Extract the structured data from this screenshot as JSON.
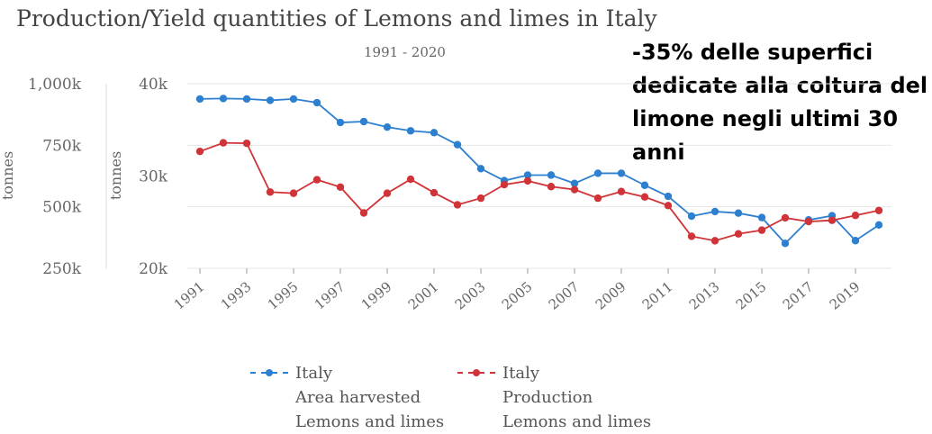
{
  "chart_data": {
    "type": "line",
    "title": "Production/Yield quantities of Lemons and limes in Italy",
    "subtitle": "1991 - 2020",
    "annotation": "-35% delle superfici dedicate alla coltura del limone negli ultimi 30 anni",
    "x": [
      1991,
      1992,
      1993,
      1994,
      1995,
      1996,
      1997,
      1998,
      1999,
      2000,
      2001,
      2002,
      2003,
      2004,
      2005,
      2006,
      2007,
      2008,
      2009,
      2010,
      2011,
      2012,
      2013,
      2014,
      2015,
      2016,
      2017,
      2018,
      2019,
      2020
    ],
    "x_tick_labels": [
      "1991",
      "1993",
      "1995",
      "1997",
      "1999",
      "2001",
      "2003",
      "2005",
      "2007",
      "2009",
      "2011",
      "2013",
      "2015",
      "2017",
      "2019"
    ],
    "axes": {
      "left_outer": {
        "label": "tonnes",
        "ylim": [
          250000,
          1000000
        ],
        "ticks": [
          "1,000k",
          "750k",
          "500k",
          "250k"
        ],
        "series": "Production"
      },
      "left_inner": {
        "label": "tonnes",
        "ylim": [
          20000,
          40000
        ],
        "ticks": [
          "40k",
          "30k",
          "20k"
        ],
        "series": "Area harvested"
      }
    },
    "grid": true,
    "legend_position": "bottom",
    "series": [
      {
        "name": "Area harvested",
        "legend": [
          "Italy",
          "Area harvested",
          "Lemons and limes"
        ],
        "color": "#2d7fcf",
        "axis": "left_inner",
        "values": [
          38350,
          38400,
          38350,
          38200,
          38350,
          37950,
          35800,
          35900,
          35300,
          34900,
          34700,
          33400,
          30800,
          29500,
          30100,
          30100,
          29200,
          30300,
          30300,
          29000,
          27800,
          25650,
          26150,
          25980,
          25500,
          22700,
          25250,
          25700,
          23000,
          24700
        ]
      },
      {
        "name": "Production",
        "legend": [
          "Italy",
          "Production",
          "Lemons and limes"
        ],
        "color": "#d03338",
        "axis": "left_outer",
        "values": [
          725000,
          760000,
          758000,
          560000,
          555000,
          610000,
          580000,
          475000,
          555000,
          612000,
          557000,
          508000,
          535000,
          590000,
          605000,
          582000,
          570000,
          535000,
          562000,
          540000,
          505000,
          380000,
          362000,
          390000,
          405000,
          455000,
          440000,
          445000,
          465000,
          485000
        ]
      }
    ]
  }
}
